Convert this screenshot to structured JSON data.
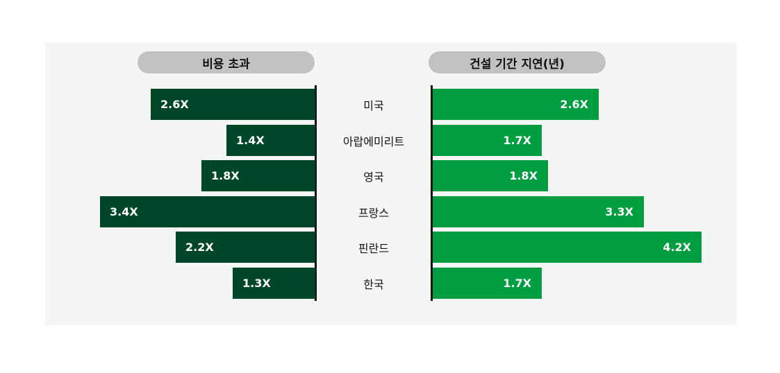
{
  "chart_data": {
    "type": "bar",
    "categories": [
      "미국",
      "아랍에미리트",
      "영국",
      "프랑스",
      "핀란드",
      "한국"
    ],
    "series": [
      {
        "name": "비용 초과",
        "values": [
          2.6,
          1.4,
          1.8,
          3.4,
          2.2,
          1.3
        ],
        "labels": [
          "2.6X",
          "1.4X",
          "1.8X",
          "3.4X",
          "2.2X",
          "1.3X"
        ],
        "color": "#00472a"
      },
      {
        "name": "건설 기간 지연(년)",
        "values": [
          2.6,
          1.7,
          1.8,
          3.3,
          4.2,
          1.7
        ],
        "labels": [
          "2.6X",
          "1.7X",
          "1.8X",
          "3.3X",
          "4.2X",
          "1.7X"
        ],
        "color": "#009e40"
      }
    ],
    "layout": "diverging-horizontal"
  },
  "headers": {
    "left": "비용 초과",
    "right": "건설 기간 지연(년)"
  }
}
